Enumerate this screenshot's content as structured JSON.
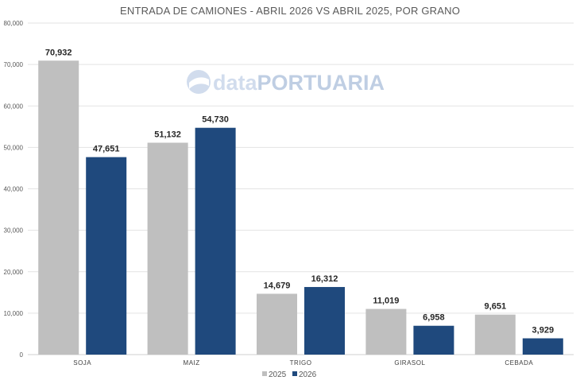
{
  "chart_data": {
    "type": "bar",
    "title": "ENTRADA DE CAMIONES - ABRIL 2026 VS ABRIL 2025, POR GRANO",
    "xlabel": "",
    "ylabel": "",
    "categories": [
      "SOJA",
      "MAIZ",
      "TRIGO",
      "GIRASOL",
      "CEBADA"
    ],
    "series": [
      {
        "name": "2025",
        "color": "#bfbfbf",
        "values": [
          70932,
          51132,
          14679,
          11019,
          9651
        ],
        "labels": [
          "70,932",
          "51,132",
          "14,679",
          "11,019",
          "9,651"
        ]
      },
      {
        "name": "2026",
        "color": "#1f497d",
        "values": [
          47651,
          54730,
          16312,
          6958,
          3929
        ],
        "labels": [
          "47,651",
          "54,730",
          "16,312",
          "6,958",
          "3,929"
        ]
      }
    ],
    "ylim": [
      0,
      80000
    ],
    "yticks": [
      0,
      10000,
      20000,
      30000,
      40000,
      50000,
      60000,
      70000,
      80000
    ],
    "ytick_labels": [
      "0",
      "10,000",
      "20,000",
      "30,000",
      "40,000",
      "50,000",
      "60,000",
      "70,000",
      "80,000"
    ],
    "grid": true,
    "legend_position": "bottom"
  },
  "watermark": {
    "part1": "data",
    "part2": "PORTUARIA",
    "icon": "port-logo-icon",
    "color": "#c9d7ea"
  }
}
